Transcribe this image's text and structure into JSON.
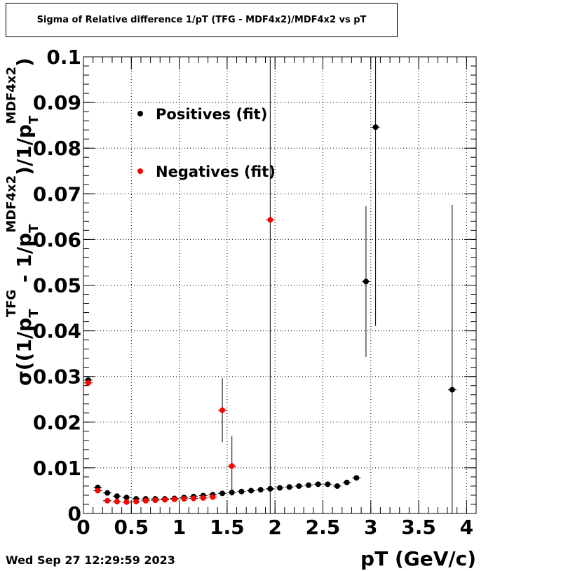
{
  "header": {
    "title": "Sigma of Relative difference 1/pT (TFG - MDF4x2)/MDF4x2 vs pT"
  },
  "footer": {
    "timestamp": "Wed Sep 27 12:29:59 2023"
  },
  "chart_data": {
    "type": "scatter",
    "title": "Sigma of Relative difference 1/pT (TFG - MDF4x2)/MDF4x2 vs pT",
    "xlabel": "pT (GeV/c)",
    "ylabel": {
      "prefix": "σ((1/p",
      "sub1": "T",
      "sup1": "TFG",
      "mid": " - 1/p",
      "sub2": "T",
      "sup2": "MDF4x2",
      "close1": ")/1/p",
      "sub3": "T",
      "sup3": "MDF4x2",
      "end": ")"
    },
    "xlim": [
      0,
      4.1
    ],
    "ylim": [
      0,
      0.1
    ],
    "x_ticks": [
      {
        "value": 0,
        "label": "0"
      },
      {
        "value": 0.5,
        "label": "0.5"
      },
      {
        "value": 1,
        "label": "1"
      },
      {
        "value": 1.5,
        "label": "1.5"
      },
      {
        "value": 2,
        "label": "2"
      },
      {
        "value": 2.5,
        "label": "2.5"
      },
      {
        "value": 3,
        "label": "3"
      },
      {
        "value": 3.5,
        "label": "3.5"
      },
      {
        "value": 4,
        "label": "4"
      }
    ],
    "y_ticks": [
      {
        "value": 0,
        "label": "0"
      },
      {
        "value": 0.01,
        "label": "0.01"
      },
      {
        "value": 0.02,
        "label": "0.02"
      },
      {
        "value": 0.03,
        "label": "0.03"
      },
      {
        "value": 0.04,
        "label": "0.04"
      },
      {
        "value": 0.05,
        "label": "0.05"
      },
      {
        "value": 0.06,
        "label": "0.06"
      },
      {
        "value": 0.07,
        "label": "0.07"
      },
      {
        "value": 0.08,
        "label": "0.08"
      },
      {
        "value": 0.09,
        "label": "0.09"
      },
      {
        "value": 0.1,
        "label": "0.1"
      }
    ],
    "grid": true,
    "legend_position": "top-left",
    "series": [
      {
        "name": "Positives (fit)",
        "color": "#000000",
        "points": [
          {
            "x": 0.05,
            "y": 0.0292,
            "err": 0.0004
          },
          {
            "x": 0.15,
            "y": 0.0057,
            "err": 0.0003
          },
          {
            "x": 0.25,
            "y": 0.0045,
            "err": 0.0002
          },
          {
            "x": 0.35,
            "y": 0.0038,
            "err": 0.0002
          },
          {
            "x": 0.45,
            "y": 0.0035,
            "err": 0.0002
          },
          {
            "x": 0.55,
            "y": 0.0032,
            "err": 0.0002
          },
          {
            "x": 0.65,
            "y": 0.0032,
            "err": 0.0002
          },
          {
            "x": 0.75,
            "y": 0.0032,
            "err": 0.0002
          },
          {
            "x": 0.85,
            "y": 0.0032,
            "err": 0.0002
          },
          {
            "x": 0.95,
            "y": 0.0033,
            "err": 0.0002
          },
          {
            "x": 1.05,
            "y": 0.0035,
            "err": 0.0002
          },
          {
            "x": 1.15,
            "y": 0.0037,
            "err": 0.0002
          },
          {
            "x": 1.25,
            "y": 0.0039,
            "err": 0.0002
          },
          {
            "x": 1.35,
            "y": 0.0041,
            "err": 0.0002
          },
          {
            "x": 1.45,
            "y": 0.0044,
            "err": 0.0002
          },
          {
            "x": 1.55,
            "y": 0.0046,
            "err": 0.0002
          },
          {
            "x": 1.65,
            "y": 0.0048,
            "err": 0.0002
          },
          {
            "x": 1.75,
            "y": 0.005,
            "err": 0.0002
          },
          {
            "x": 1.85,
            "y": 0.0052,
            "err": 0.0002
          },
          {
            "x": 1.95,
            "y": 0.0054,
            "err": 0.0002
          },
          {
            "x": 2.05,
            "y": 0.0056,
            "err": 0.0003
          },
          {
            "x": 2.15,
            "y": 0.0058,
            "err": 0.0003
          },
          {
            "x": 2.25,
            "y": 0.006,
            "err": 0.0003
          },
          {
            "x": 2.35,
            "y": 0.0062,
            "err": 0.0003
          },
          {
            "x": 2.45,
            "y": 0.0064,
            "err": 0.0003
          },
          {
            "x": 2.55,
            "y": 0.0064,
            "err": 0.0003
          },
          {
            "x": 2.65,
            "y": 0.006,
            "err": 0.0004
          },
          {
            "x": 2.75,
            "y": 0.0068,
            "err": 0.0004
          },
          {
            "x": 2.85,
            "y": 0.0078,
            "err": 0.0005
          },
          {
            "x": 1.95,
            "y": 0.0054,
            "err": 0.1
          },
          {
            "x": 2.95,
            "y": 0.0508,
            "err": 0.0165
          },
          {
            "x": 3.05,
            "y": 0.0846,
            "err": 0.0435
          },
          {
            "x": 3.85,
            "y": 0.0271,
            "err": 0.0405
          }
        ]
      },
      {
        "name": "Negatives (fit)",
        "color": "#ff0000",
        "points": [
          {
            "x": 0.05,
            "y": 0.0286,
            "err": 0.0004
          },
          {
            "x": 0.15,
            "y": 0.005,
            "err": 0.0003
          },
          {
            "x": 0.25,
            "y": 0.0028,
            "err": 0.0002
          },
          {
            "x": 0.35,
            "y": 0.0026,
            "err": 0.0002
          },
          {
            "x": 0.45,
            "y": 0.0025,
            "err": 0.0002
          },
          {
            "x": 0.55,
            "y": 0.0026,
            "err": 0.0002
          },
          {
            "x": 0.65,
            "y": 0.0028,
            "err": 0.0002
          },
          {
            "x": 0.75,
            "y": 0.0029,
            "err": 0.0002
          },
          {
            "x": 0.85,
            "y": 0.003,
            "err": 0.0002
          },
          {
            "x": 0.95,
            "y": 0.0031,
            "err": 0.0002
          },
          {
            "x": 1.05,
            "y": 0.0032,
            "err": 0.0002
          },
          {
            "x": 1.15,
            "y": 0.0033,
            "err": 0.0002
          },
          {
            "x": 1.25,
            "y": 0.0034,
            "err": 0.0002
          },
          {
            "x": 1.35,
            "y": 0.0036,
            "err": 0.0002
          },
          {
            "x": 1.45,
            "y": 0.0226,
            "err": 0.007
          },
          {
            "x": 1.55,
            "y": 0.0104,
            "err": 0.0065
          },
          {
            "x": 1.95,
            "y": 0.0643,
            "err": 0.0005
          }
        ]
      }
    ]
  }
}
